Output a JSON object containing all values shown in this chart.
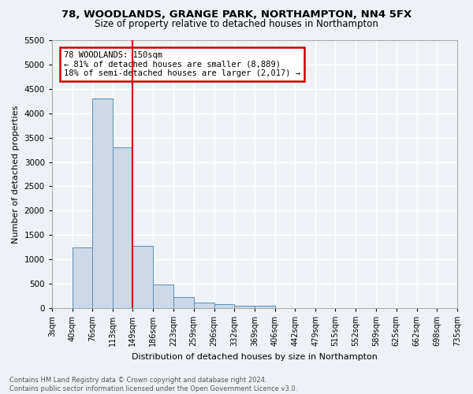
{
  "title": "78, WOODLANDS, GRANGE PARK, NORTHAMPTON, NN4 5FX",
  "subtitle": "Size of property relative to detached houses in Northampton",
  "xlabel": "Distribution of detached houses by size in Northampton",
  "ylabel": "Number of detached properties",
  "footer_line1": "Contains HM Land Registry data © Crown copyright and database right 2024.",
  "footer_line2": "Contains public sector information licensed under the Open Government Licence v3.0.",
  "annotation_line1": "78 WOODLANDS: 150sqm",
  "annotation_line2": "← 81% of detached houses are smaller (8,889)",
  "annotation_line3": "18% of semi-detached houses are larger (2,017) →",
  "property_line_x": 149,
  "bar_color": "#ccd9e8",
  "bar_edge_color": "#5b8db8",
  "property_line_color": "#cc0000",
  "annotation_box_edge_color": "#cc0000",
  "background_color": "#eef2f7",
  "grid_color": "#ffffff",
  "categories": [
    "3sqm",
    "40sqm",
    "76sqm",
    "113sqm",
    "149sqm",
    "186sqm",
    "223sqm",
    "259sqm",
    "296sqm",
    "332sqm",
    "369sqm",
    "406sqm",
    "442sqm",
    "479sqm",
    "515sqm",
    "552sqm",
    "589sqm",
    "625sqm",
    "662sqm",
    "698sqm",
    "735sqm"
  ],
  "values": [
    0,
    1250,
    4300,
    3300,
    1280,
    480,
    220,
    100,
    80,
    50,
    50,
    0,
    0,
    0,
    0,
    0,
    0,
    0,
    0,
    0,
    0
  ],
  "bin_edges": [
    3,
    40,
    76,
    113,
    149,
    186,
    223,
    259,
    296,
    332,
    369,
    406,
    442,
    479,
    515,
    552,
    589,
    625,
    662,
    698,
    735
  ],
  "ylim": [
    0,
    5500
  ],
  "yticks": [
    0,
    500,
    1000,
    1500,
    2000,
    2500,
    3000,
    3500,
    4000,
    4500,
    5000,
    5500
  ]
}
